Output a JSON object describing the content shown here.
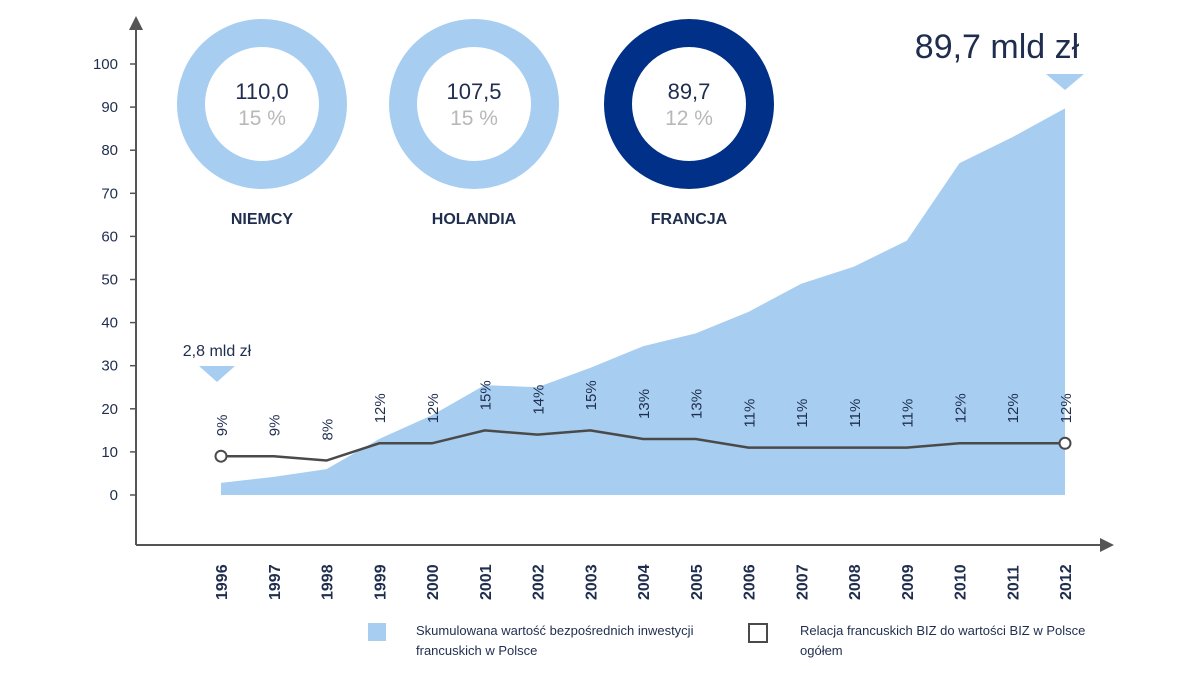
{
  "chart_data": {
    "type": "area",
    "x": [
      "1996",
      "1997",
      "1998",
      "1999",
      "2000",
      "2001",
      "2002",
      "2003",
      "2004",
      "2005",
      "2006",
      "2007",
      "2008",
      "2009",
      "2010",
      "2011",
      "2012"
    ],
    "series": [
      {
        "name": "Skumulowana wartość bezpośrednich inwestycji francuskich w Polsce",
        "values": [
          2.8,
          4.2,
          6,
          13,
          18.5,
          25.5,
          25,
          29.5,
          34.5,
          37.5,
          42.5,
          49,
          53,
          59,
          77,
          83,
          89.7
        ]
      },
      {
        "name": "Relacja francuskich BIZ do wartości BIZ w Polsce ogółem",
        "values": [
          9,
          9,
          8,
          12,
          12,
          15,
          14,
          15,
          13,
          13,
          11,
          11,
          11,
          11,
          12,
          12,
          12
        ],
        "labels": [
          "9%",
          "9%",
          "8%",
          "12%",
          "12%",
          "15%",
          "14%",
          "15%",
          "13%",
          "13%",
          "11%",
          "11%",
          "11%",
          "11%",
          "12%",
          "12%",
          "12%"
        ]
      }
    ],
    "y_ticks": [
      "0",
      "10",
      "20",
      "30",
      "40",
      "50",
      "60",
      "70",
      "80",
      "90",
      "100"
    ],
    "ylim": [
      0,
      100
    ],
    "annotations": {
      "start": "2,8 mld zł",
      "end": "89,7 mld zł"
    },
    "donuts": [
      {
        "name": "NIEMCY",
        "value": "110,0",
        "share": "15 %",
        "color": "#a7cdf0"
      },
      {
        "name": "HOLANDIA",
        "value": "107,5",
        "share": "15 %",
        "color": "#a7cdf0"
      },
      {
        "name": "FRANCJA",
        "value": "89,7",
        "share": "12 %",
        "color": "#003087"
      }
    ],
    "colors": {
      "area": "#a7cdf0",
      "line": "#4a4a4a",
      "marker": "#56c8f0",
      "axis": "#555555"
    },
    "grid": false
  },
  "legend": {
    "area_label": "Skumulowana wartość bezpośrednich inwestycji francuskich w Polsce",
    "line_label": "Relacja francuskich BIZ do wartości BIZ w Polsce ogółem"
  }
}
